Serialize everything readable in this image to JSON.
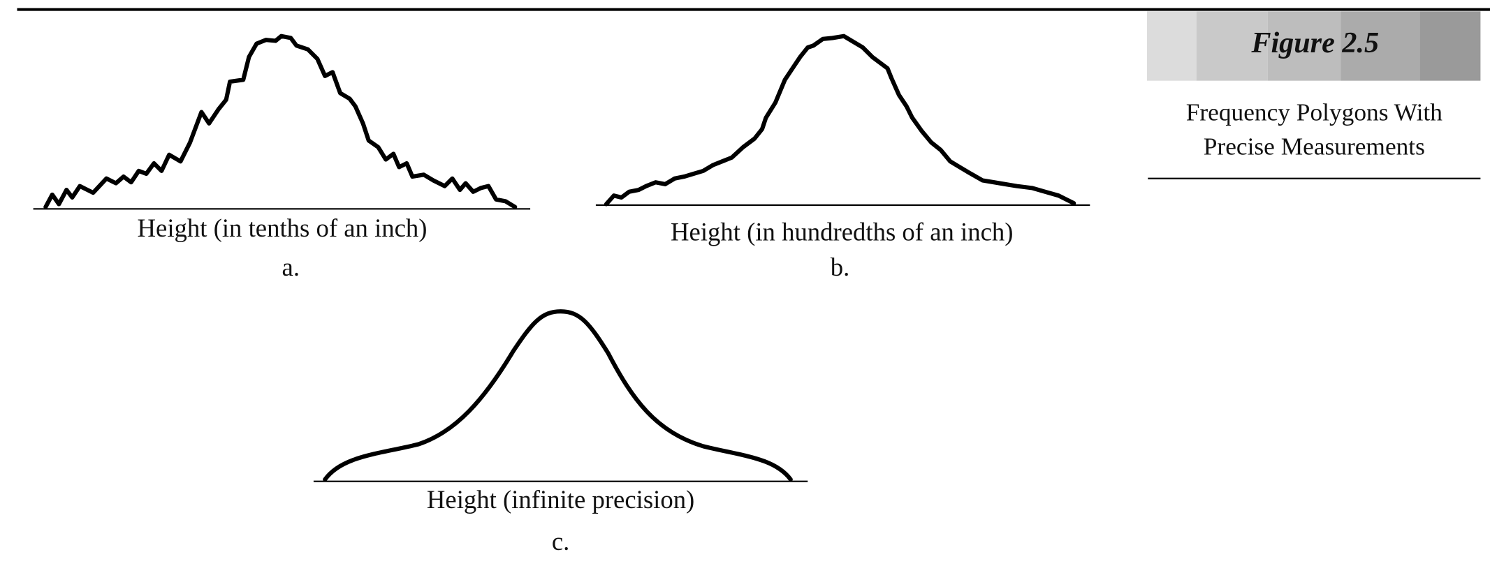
{
  "figure": {
    "label": "Figure 2.5",
    "caption": [
      "Frequency Polygons With",
      "Precise Measurements"
    ]
  },
  "panels": [
    {
      "axis_label": "Height (in tenths of an inch)",
      "letter": "a."
    },
    {
      "axis_label": "Height (in hundredths of an inch)",
      "letter": "b."
    },
    {
      "axis_label": "Height (infinite precision)",
      "letter": "c."
    }
  ]
}
